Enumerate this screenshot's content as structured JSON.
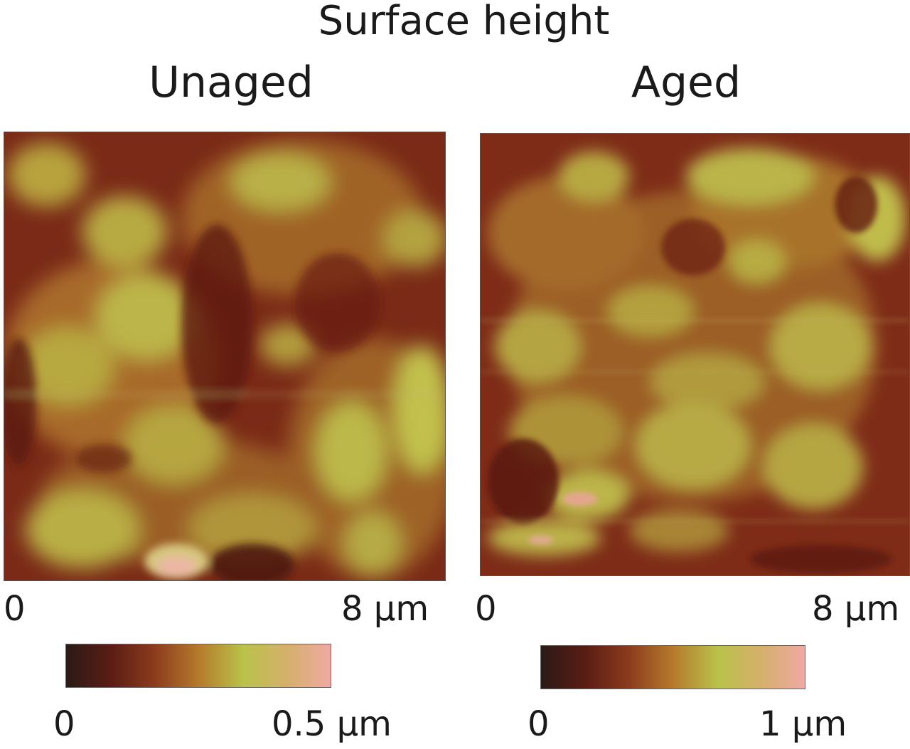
{
  "figure": {
    "title": "Surface height"
  },
  "panels": [
    {
      "id": "unaged",
      "title": "Unaged",
      "x_axis": {
        "min_label": "0",
        "max_label": "8 µm"
      },
      "colorbar": {
        "min_label": "0",
        "max_label": "0.5 µm"
      }
    },
    {
      "id": "aged",
      "title": "Aged",
      "x_axis": {
        "min_label": "0",
        "max_label": "8 µm"
      },
      "colorbar": {
        "min_label": "0",
        "max_label": "1 µm"
      }
    }
  ],
  "colormap": [
    "#2b1a16",
    "#5a1d14",
    "#8b3a1c",
    "#b57a2c",
    "#b9c24a",
    "#d4b06a",
    "#f0a9a3"
  ]
}
